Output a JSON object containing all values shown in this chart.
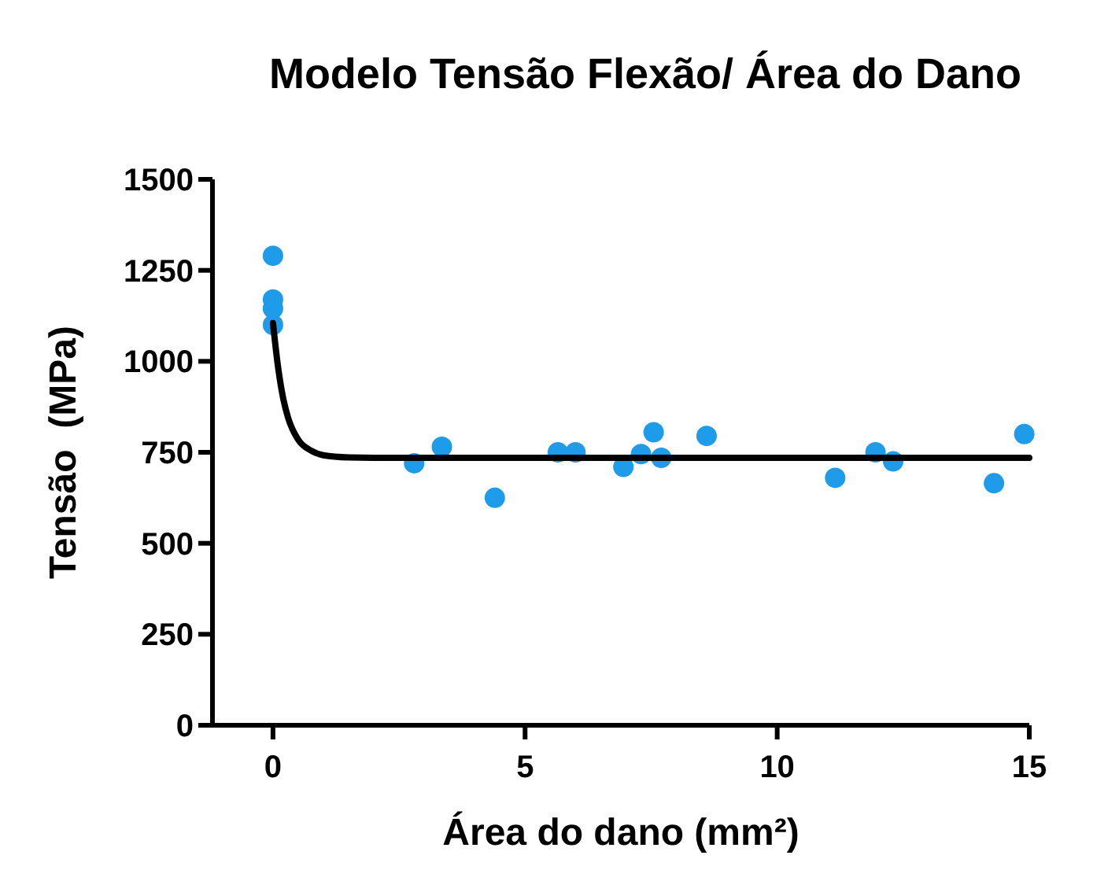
{
  "chart_data": {
    "type": "scatter",
    "title": "Modelo Tensão Flexão/ Área do Dano",
    "xlabel": "Área do dano (mm²)",
    "ylabel": "Tensão  (MPa)",
    "xlim": [
      -1.2,
      15
    ],
    "xticks": [
      0,
      5,
      10,
      15
    ],
    "ylim": [
      0,
      1500
    ],
    "yticks": [
      0,
      250,
      500,
      750,
      1000,
      1250,
      1500
    ],
    "grid": false,
    "marker": "circle",
    "series": [
      {
        "color": "#1e9be9",
        "x": [
          0,
          0,
          0,
          0,
          2.8,
          3.35,
          4.4,
          5.65,
          6.0,
          6.95,
          7.3,
          7.55,
          7.7,
          8.6,
          11.15,
          11.95,
          12.3,
          14.3,
          14.9
        ],
        "values": [
          1290,
          1170,
          1145,
          1100,
          720,
          765,
          625,
          750,
          750,
          710,
          745,
          805,
          735,
          795,
          680,
          750,
          725,
          665,
          800
        ]
      },
      {
        "type": "line",
        "color": "#000000",
        "marker": "none",
        "line_style": "solid",
        "x": [
          0,
          0.1,
          0.2,
          0.3,
          0.5,
          0.75,
          1,
          1.5,
          2,
          5,
          10,
          15
        ],
        "values": [
          1105,
          985,
          900,
          845,
          785,
          755,
          742,
          736,
          735,
          735,
          735,
          735
        ]
      }
    ]
  }
}
